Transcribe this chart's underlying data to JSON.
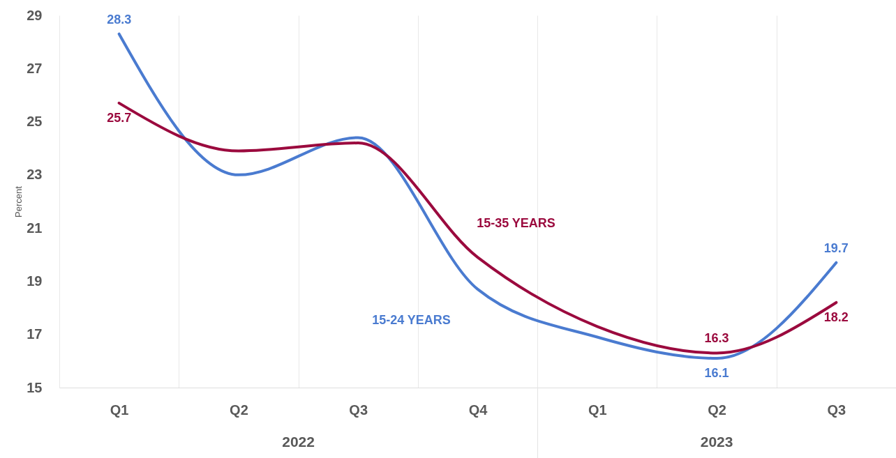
{
  "chart_data": {
    "type": "line",
    "ylabel": "Percent",
    "categories": [
      "Q1",
      "Q2",
      "Q3",
      "Q4",
      "Q1",
      "Q2",
      "Q3"
    ],
    "series": [
      {
        "name": "15-24 YEARS",
        "color": "#4a7bd0",
        "values": [
          28.3,
          23.0,
          24.4,
          18.7,
          16.9,
          16.1,
          19.7
        ],
        "value_labels": [
          "28.3",
          null,
          null,
          null,
          null,
          "16.1",
          "19.7"
        ]
      },
      {
        "name": "15-35 YEARS",
        "color": "#9b0a3e",
        "values": [
          25.7,
          23.9,
          24.2,
          19.9,
          17.3,
          16.3,
          18.2
        ],
        "value_labels": [
          "25.7",
          null,
          null,
          null,
          null,
          "16.3",
          "18.2"
        ]
      }
    ],
    "ylim": [
      15,
      29
    ],
    "yticks": [
      15,
      17,
      19,
      21,
      23,
      25,
      27,
      29
    ],
    "grid": "x",
    "legend": false,
    "marker": "none",
    "line_style": "solid",
    "annotations": [
      "2022",
      "2023"
    ]
  }
}
